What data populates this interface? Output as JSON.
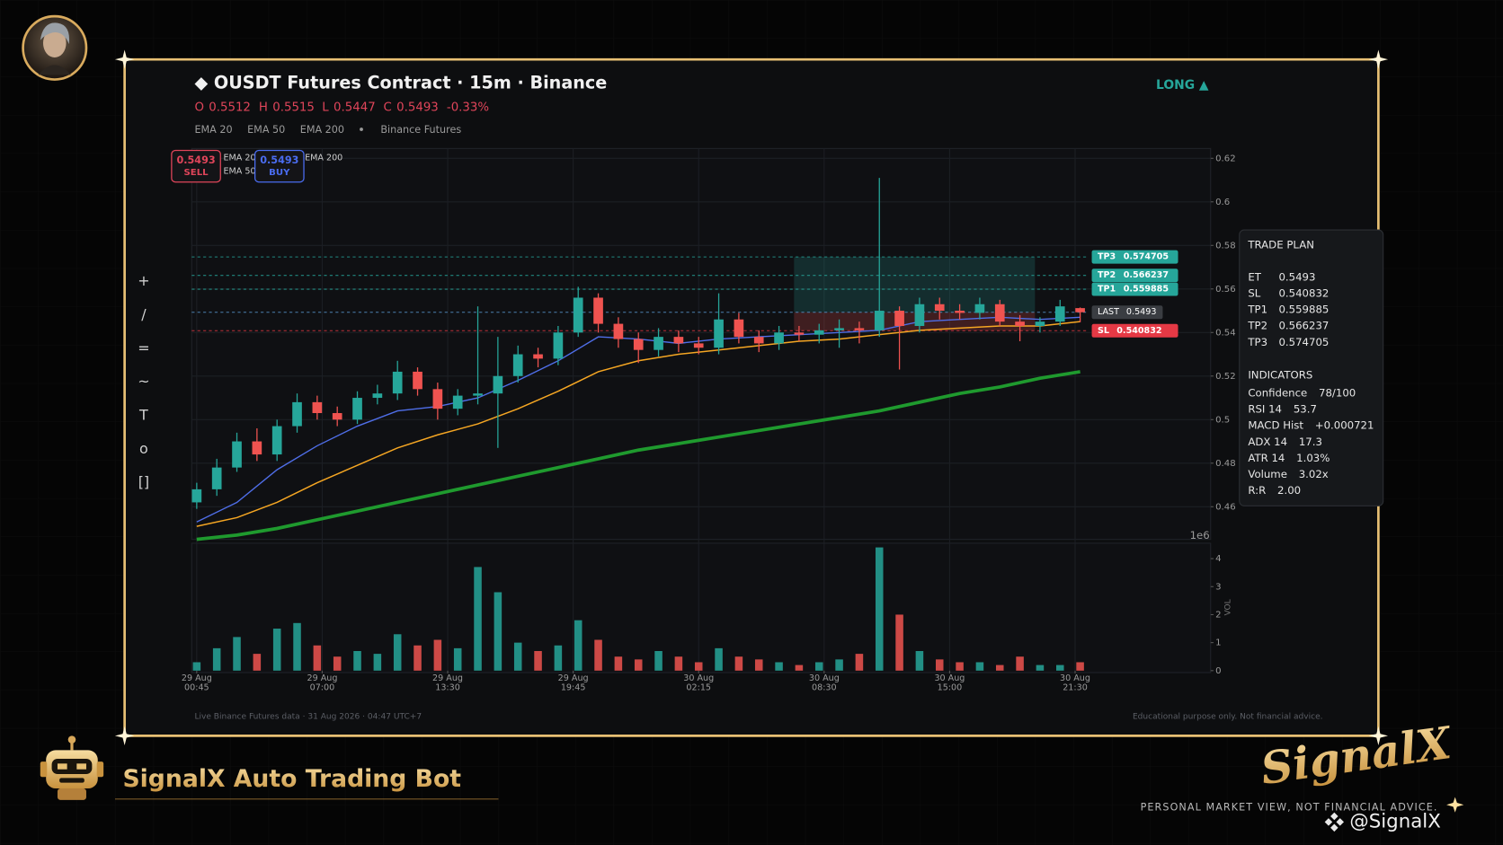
{
  "header": {
    "title": "◆ OUSDT Futures Contract · 15m · Binance",
    "direction": "LONG ▲",
    "ohlc": [
      {
        "label": "O",
        "value": 0.5512
      },
      {
        "label": "H",
        "value": 0.5515
      },
      {
        "label": "L",
        "value": 0.5447
      },
      {
        "label": "C",
        "value": 0.5493
      }
    ],
    "change": "-0.33%",
    "source": "Binance Futures"
  },
  "order_buttons": [
    {
      "price": 0.5493,
      "label": "SELL",
      "color": "#e0455a"
    },
    {
      "price": 0.5493,
      "label": "BUY",
      "color": "#4a6cf0"
    }
  ],
  "toolbar": [
    "+",
    "/",
    "=",
    "~",
    "T",
    "o",
    "[]"
  ],
  "chart_data": {
    "type": "candlestick",
    "x": [
      0,
      4,
      8,
      12,
      16,
      20,
      24,
      28,
      32,
      36,
      40,
      44,
      48,
      52,
      56,
      60,
      64,
      68,
      72,
      76,
      80,
      84,
      88,
      92,
      96,
      100,
      104,
      108,
      112,
      116,
      120,
      124,
      128,
      132,
      136,
      140,
      144,
      148,
      152,
      156,
      160,
      164,
      168,
      172,
      176
    ],
    "open": [
      0.462,
      0.468,
      0.478,
      0.49,
      0.484,
      0.497,
      0.508,
      0.503,
      0.5,
      0.51,
      0.512,
      0.522,
      0.514,
      0.505,
      0.511,
      0.512,
      0.52,
      0.53,
      0.528,
      0.54,
      0.556,
      0.544,
      0.537,
      0.532,
      0.538,
      0.535,
      0.533,
      0.546,
      0.538,
      0.535,
      0.54,
      0.539,
      0.541,
      0.542,
      0.541,
      0.55,
      0.543,
      0.553,
      0.55,
      0.549,
      0.553,
      0.545,
      0.543,
      0.545,
      0.5512
    ],
    "high": [
      0.471,
      0.482,
      0.494,
      0.496,
      0.5,
      0.512,
      0.511,
      0.506,
      0.513,
      0.516,
      0.527,
      0.524,
      0.517,
      0.514,
      0.552,
      0.538,
      0.534,
      0.533,
      0.543,
      0.561,
      0.558,
      0.547,
      0.54,
      0.542,
      0.541,
      0.538,
      0.558,
      0.549,
      0.541,
      0.543,
      0.543,
      0.544,
      0.546,
      0.545,
      0.611,
      0.552,
      0.556,
      0.556,
      0.553,
      0.556,
      0.555,
      0.548,
      0.547,
      0.555,
      0.5515
    ],
    "low": [
      0.459,
      0.465,
      0.476,
      0.481,
      0.481,
      0.494,
      0.5,
      0.497,
      0.498,
      0.507,
      0.509,
      0.511,
      0.5,
      0.502,
      0.507,
      0.487,
      0.517,
      0.524,
      0.525,
      0.538,
      0.54,
      0.533,
      0.526,
      0.529,
      0.531,
      0.53,
      0.53,
      0.535,
      0.531,
      0.532,
      0.536,
      0.535,
      0.533,
      0.535,
      0.538,
      0.523,
      0.54,
      0.546,
      0.546,
      0.546,
      0.543,
      0.536,
      0.54,
      0.543,
      0.5447
    ],
    "close": [
      0.468,
      0.478,
      0.49,
      0.484,
      0.497,
      0.508,
      0.503,
      0.5,
      0.51,
      0.512,
      0.522,
      0.514,
      0.505,
      0.511,
      0.512,
      0.52,
      0.53,
      0.528,
      0.54,
      0.556,
      0.544,
      0.537,
      0.532,
      0.538,
      0.535,
      0.533,
      0.546,
      0.538,
      0.535,
      0.54,
      0.539,
      0.541,
      0.542,
      0.541,
      0.55,
      0.543,
      0.553,
      0.55,
      0.549,
      0.553,
      0.545,
      0.543,
      0.545,
      0.552,
      0.5493
    ],
    "colors": {
      "up": "#26a69a",
      "down": "#ef5350"
    },
    "series": [
      {
        "name": "EMA 20",
        "color": "#4f6ee8",
        "width": 1.3,
        "x": [
          0,
          8,
          16,
          24,
          32,
          40,
          48,
          56,
          64,
          72,
          80,
          88,
          96,
          104,
          112,
          120,
          128,
          136,
          144,
          152,
          160,
          168,
          176
        ],
        "values": [
          0.453,
          0.462,
          0.477,
          0.488,
          0.497,
          0.504,
          0.506,
          0.51,
          0.518,
          0.527,
          0.538,
          0.537,
          0.535,
          0.537,
          0.538,
          0.539,
          0.54,
          0.541,
          0.545,
          0.546,
          0.547,
          0.546,
          0.547
        ]
      },
      {
        "name": "EMA 50",
        "color": "#f5a623",
        "width": 1.4,
        "x": [
          0,
          8,
          16,
          24,
          32,
          40,
          48,
          56,
          64,
          72,
          80,
          88,
          96,
          104,
          112,
          120,
          128,
          136,
          144,
          152,
          160,
          168,
          176
        ],
        "values": [
          0.451,
          0.455,
          0.462,
          0.471,
          0.479,
          0.487,
          0.493,
          0.498,
          0.505,
          0.513,
          0.522,
          0.527,
          0.53,
          0.532,
          0.534,
          0.536,
          0.537,
          0.539,
          0.541,
          0.542,
          0.543,
          0.543,
          0.545
        ]
      },
      {
        "name": "EMA 200",
        "color": "#1f9a2e",
        "width": 3.5,
        "x": [
          0,
          8,
          16,
          24,
          32,
          40,
          48,
          56,
          64,
          72,
          80,
          88,
          96,
          104,
          112,
          120,
          128,
          136,
          144,
          152,
          160,
          168,
          176
        ],
        "values": [
          0.445,
          0.447,
          0.45,
          0.454,
          0.458,
          0.462,
          0.466,
          0.47,
          0.474,
          0.478,
          0.482,
          0.486,
          0.489,
          0.492,
          0.495,
          0.498,
          0.501,
          0.504,
          0.508,
          0.512,
          0.515,
          0.519,
          0.522
        ]
      }
    ],
    "xlim": [
      -1,
      202
    ],
    "ylim": [
      0.445,
      0.6245
    ],
    "yticks": [
      0.46,
      0.48,
      0.5,
      0.52,
      0.54,
      0.56,
      0.58,
      0.6,
      0.62
    ],
    "xticks": [
      {
        "value": 0,
        "label": [
          "29 Aug",
          "00:45"
        ]
      },
      {
        "value": 25,
        "label": [
          "29 Aug",
          "07:00"
        ]
      },
      {
        "value": 50,
        "label": [
          "29 Aug",
          "13:30"
        ]
      },
      {
        "value": 75,
        "label": [
          "29 Aug",
          "19:45"
        ]
      },
      {
        "value": 100,
        "label": [
          "30 Aug",
          "02:15"
        ]
      },
      {
        "value": 125,
        "label": [
          "30 Aug",
          "08:30"
        ]
      },
      {
        "value": 150,
        "label": [
          "30 Aug",
          "15:00"
        ]
      },
      {
        "value": 175,
        "label": [
          "30 Aug",
          "21:30"
        ]
      }
    ],
    "grid": true,
    "levels": [
      {
        "label": "TP3",
        "value": 0.574705,
        "color": "#26a69a"
      },
      {
        "label": "TP2",
        "value": 0.566237,
        "color": "#26a69a"
      },
      {
        "label": "TP1",
        "value": 0.559885,
        "color": "#26a69a"
      },
      {
        "label": "LAST",
        "value": 0.5493,
        "color": "#5b9bd5"
      },
      {
        "label": "SL",
        "value": 0.540832,
        "color": "#e53945"
      }
    ],
    "trade_zone": {
      "x": [
        119,
        167
      ]
    },
    "volume": {
      "values": [
        0.3,
        0.8,
        1.2,
        0.6,
        1.5,
        1.7,
        0.9,
        0.5,
        0.7,
        0.6,
        1.3,
        0.9,
        1.1,
        0.8,
        3.7,
        2.8,
        1.0,
        0.7,
        0.9,
        1.8,
        1.1,
        0.5,
        0.4,
        0.7,
        0.5,
        0.3,
        0.8,
        0.5,
        0.4,
        0.3,
        0.2,
        0.3,
        0.4,
        0.6,
        4.4,
        2.0,
        0.7,
        0.4,
        0.3,
        0.3,
        0.2,
        0.5,
        0.2,
        0.2,
        0.3
      ],
      "ylim": [
        0,
        4.55
      ],
      "yticks": [
        0,
        1,
        2,
        3,
        4
      ],
      "label": "VOL",
      "offset_label": "1e6"
    }
  },
  "trade_plan": {
    "title": "TRADE PLAN",
    "levels": [
      [
        "ET",
        "0.5493"
      ],
      [
        "SL",
        "0.540832"
      ],
      [
        "TP1",
        "0.559885"
      ],
      [
        "TP2",
        "0.566237"
      ],
      [
        "TP3",
        "0.574705"
      ]
    ],
    "indicators_title": "INDICATORS",
    "indicators": [
      [
        "Confidence",
        "78/100"
      ],
      [
        "RSI 14",
        "53.7"
      ],
      [
        "MACD Hist",
        "+0.000721"
      ],
      [
        "ADX 14",
        "17.3"
      ],
      [
        "ATR 14",
        "1.03%"
      ],
      [
        "Volume",
        "3.02x"
      ],
      [
        "R:R",
        "2.00"
      ]
    ]
  },
  "footer": {
    "data_note": "Live Binance Futures data  ·  31 Aug 2026 · 04:47 UTC+7",
    "disclaimer": "Educational purpose only. Not financial advice."
  },
  "brand": {
    "bot_name": "SignalX Auto Trading Bot",
    "logo": "SignalX",
    "tagline": "PERSONAL MARKET VIEW, NOT FINANCIAL ADVICE.",
    "handle": "@SignalX"
  }
}
